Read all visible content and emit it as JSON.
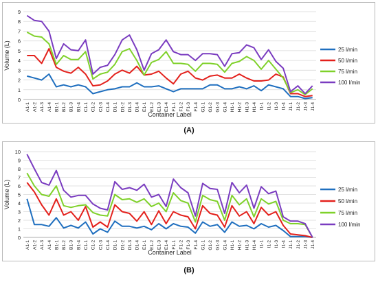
{
  "chart_data": [
    {
      "type": "line",
      "panel_label": "(A)",
      "xlabel": "Container Label",
      "ylabel": "Volume (L)",
      "ylim": [
        0,
        9
      ],
      "yticks": [
        0,
        1,
        2,
        3,
        4,
        5,
        6,
        7,
        8,
        9
      ],
      "grid": true,
      "legend": "right",
      "categories": [
        "A1-1",
        "A1-2",
        "A1-3",
        "A1-4",
        "B1-1",
        "B1-2",
        "B1-3",
        "B1-4",
        "C1-1",
        "C1-2",
        "C1-3",
        "C1-4",
        "D1-1",
        "D1-2",
        "D1-3",
        "D1-4",
        "E1-1",
        "E1-2",
        "E1-3",
        "E1-4",
        "F1-1",
        "F1-2",
        "F1-3",
        "F1-4",
        "G1-1",
        "G1-2",
        "G1-3",
        "G1-4",
        "H1-1",
        "H1-2",
        "H1-3",
        "H1-4",
        "I1-1",
        "I1-2",
        "I1-3",
        "I1-4",
        "J1-1",
        "J1-2",
        "J1-3",
        "J1-4"
      ],
      "series": [
        {
          "name": "25 l/min",
          "color": "#1f6fbf",
          "values": [
            2.4,
            2.2,
            2.0,
            2.6,
            1.3,
            1.5,
            1.3,
            1.5,
            1.3,
            0.6,
            0.8,
            1.0,
            1.1,
            1.3,
            1.3,
            1.7,
            1.3,
            1.3,
            1.4,
            1.1,
            0.8,
            1.1,
            1.1,
            1.1,
            1.1,
            1.5,
            1.5,
            1.1,
            1.1,
            1.3,
            1.1,
            1.4,
            0.9,
            1.5,
            1.3,
            1.1,
            0.3,
            0.3,
            0.1,
            0.2
          ]
        },
        {
          "name": "50 l/min",
          "color": "#e3201b",
          "values": [
            4.5,
            4.5,
            3.7,
            5.2,
            3.3,
            2.9,
            2.7,
            3.3,
            2.6,
            1.4,
            1.5,
            1.9,
            2.6,
            3.0,
            2.7,
            3.4,
            2.5,
            2.6,
            2.9,
            2.2,
            1.6,
            2.6,
            2.9,
            2.2,
            2.0,
            2.4,
            2.5,
            2.2,
            2.2,
            2.6,
            2.2,
            1.9,
            1.9,
            2.0,
            2.6,
            2.3,
            0.6,
            0.6,
            0.3,
            0.4
          ]
        },
        {
          "name": "75 l/min",
          "color": "#7fd12a",
          "values": [
            6.9,
            6.5,
            6.4,
            5.7,
            3.6,
            4.5,
            4.1,
            4.1,
            4.9,
            2.1,
            2.6,
            2.8,
            3.6,
            4.9,
            5.2,
            4.0,
            2.5,
            3.8,
            4.1,
            4.9,
            3.7,
            3.7,
            3.6,
            2.9,
            3.7,
            3.7,
            3.6,
            2.8,
            3.7,
            3.9,
            4.4,
            4.0,
            3.1,
            4.0,
            3.1,
            2.2,
            0.7,
            1.0,
            0.5,
            1.1
          ]
        },
        {
          "name": "100 l/min",
          "color": "#7a3cc0",
          "values": [
            8.6,
            8.1,
            8.0,
            7.0,
            4.2,
            5.7,
            5.1,
            5.0,
            6.1,
            2.6,
            3.3,
            3.5,
            4.6,
            6.1,
            6.6,
            5.1,
            3.0,
            4.7,
            5.1,
            6.1,
            4.9,
            4.6,
            4.6,
            4.0,
            4.7,
            4.7,
            4.6,
            3.4,
            4.7,
            4.8,
            5.6,
            5.3,
            4.1,
            5.1,
            3.9,
            3.2,
            0.8,
            1.4,
            0.6,
            1.4
          ]
        }
      ]
    },
    {
      "type": "line",
      "panel_label": "(B)",
      "xlabel": "Container Label",
      "ylabel": "Volume (L)",
      "ylim": [
        0,
        10
      ],
      "yticks": [
        0,
        1,
        2,
        3,
        4,
        5,
        6,
        7,
        8,
        9,
        10
      ],
      "grid": true,
      "legend": "right",
      "categories": [
        "A1-1",
        "A1-2",
        "A1-3",
        "A1-4",
        "B1-1",
        "B1-2",
        "B1-3",
        "B1-4",
        "C1-1",
        "C1-2",
        "C1-3",
        "C1-4",
        "D1-1",
        "D1-2",
        "D1-3",
        "D1-4",
        "E1-1",
        "E1-2",
        "E1-3",
        "E1-4",
        "F1-1",
        "F1-2",
        "F1-3",
        "F1-4",
        "G1-1",
        "G1-2",
        "G1-3",
        "G1-4",
        "H1-1",
        "H1-2",
        "H1-3",
        "H1-4",
        "I1-1",
        "I1-2",
        "I1-3",
        "I1-4",
        "J1-1",
        "J1-2",
        "J1-3",
        "J1-4"
      ],
      "series": [
        {
          "name": "25 l/min",
          "color": "#1f6fbf",
          "values": [
            4.5,
            1.5,
            1.5,
            1.3,
            2.3,
            1.1,
            1.4,
            1.1,
            1.8,
            0.4,
            1.0,
            0.6,
            1.9,
            1.3,
            1.3,
            1.1,
            1.3,
            0.9,
            1.6,
            1.0,
            1.6,
            1.3,
            1.2,
            0.5,
            1.8,
            1.3,
            1.5,
            0.6,
            1.8,
            1.3,
            1.4,
            1.0,
            1.6,
            1.2,
            1.4,
            0.8,
            0.1,
            0.1,
            0.1,
            0.0
          ]
        },
        {
          "name": "50 l/min",
          "color": "#e3201b",
          "values": [
            6.4,
            5.3,
            3.8,
            2.6,
            4.5,
            2.6,
            3.0,
            2.0,
            3.6,
            1.2,
            1.8,
            1.2,
            3.8,
            3.0,
            2.8,
            1.9,
            3.0,
            1.5,
            3.1,
            1.6,
            3.0,
            2.6,
            2.4,
            1.0,
            3.7,
            2.8,
            2.6,
            1.2,
            3.7,
            2.5,
            3.0,
            1.6,
            3.5,
            2.6,
            3.0,
            1.4,
            0.4,
            0.3,
            0.2,
            0.0
          ]
        },
        {
          "name": "75 l/min",
          "color": "#7fd12a",
          "values": [
            7.5,
            6.0,
            5.0,
            4.8,
            6.0,
            3.7,
            3.5,
            3.7,
            3.8,
            2.9,
            2.6,
            2.5,
            5.0,
            4.4,
            4.5,
            4.1,
            4.5,
            3.6,
            4.0,
            3.0,
            5.2,
            4.3,
            4.0,
            1.8,
            4.9,
            4.4,
            4.2,
            2.0,
            4.9,
            3.8,
            4.5,
            2.4,
            4.5,
            3.9,
            4.2,
            2.0,
            1.6,
            1.6,
            1.5,
            0.0
          ]
        },
        {
          "name": "100 l/min",
          "color": "#7a3cc0",
          "values": [
            9.7,
            8.0,
            6.4,
            6.1,
            7.8,
            5.5,
            4.7,
            4.9,
            4.9,
            3.9,
            3.4,
            3.2,
            6.5,
            5.6,
            5.8,
            5.5,
            6.2,
            4.7,
            5.0,
            3.6,
            6.8,
            5.8,
            5.2,
            2.5,
            6.3,
            5.7,
            5.6,
            2.8,
            6.4,
            5.2,
            6.1,
            3.4,
            5.9,
            5.1,
            5.4,
            2.4,
            1.9,
            1.9,
            1.6,
            0.0
          ]
        }
      ]
    }
  ]
}
